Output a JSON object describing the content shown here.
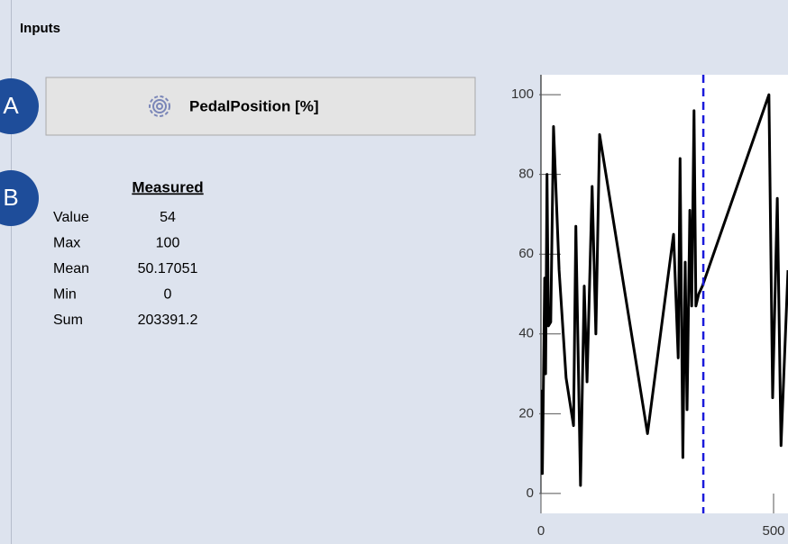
{
  "panel": {
    "title": "Inputs"
  },
  "badges": [
    "A",
    "B"
  ],
  "button": {
    "label": "PedalPosition [%]"
  },
  "stats": {
    "header": "Measured",
    "rows": [
      {
        "label": "Value",
        "value": 54
      },
      {
        "label": "Max",
        "value": 100
      },
      {
        "label": "Mean",
        "value": 50.17051
      },
      {
        "label": "Min",
        "value": 0
      },
      {
        "label": "Sum",
        "value": 203391.2
      }
    ]
  },
  "chart_data": {
    "type": "line",
    "x": [
      0,
      3,
      8,
      10,
      13,
      16,
      21,
      27,
      39,
      54,
      70,
      75,
      85,
      93,
      99,
      110,
      118,
      126,
      229,
      285,
      295,
      299,
      305,
      310,
      314,
      320,
      324,
      329,
      333,
      339,
      347,
      490,
      498,
      508,
      516,
      531
    ],
    "series": [
      {
        "color": "#000000",
        "values": [
          26,
          5,
          54,
          30,
          80,
          42,
          43,
          92,
          56,
          29,
          17,
          67,
          2,
          52,
          28,
          77,
          40,
          90,
          15,
          65,
          34,
          84,
          9,
          58,
          21,
          71,
          47,
          96,
          47,
          50,
          52,
          100,
          24,
          74,
          12,
          56
        ]
      }
    ],
    "cursor_x": 349,
    "cursor_color": "#1a1adb",
    "xlim": [
      0,
      531
    ],
    "ylim": [
      -5,
      105
    ],
    "xticks": [
      0,
      500
    ],
    "yticks": [
      0,
      20,
      40,
      60,
      80,
      100
    ]
  }
}
